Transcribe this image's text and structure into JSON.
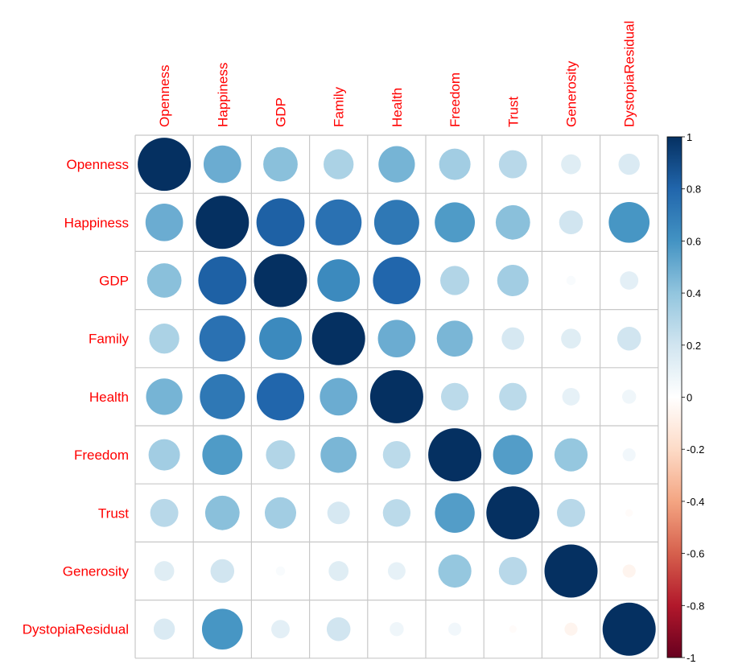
{
  "chart_data": {
    "type": "heatmap",
    "style": "corrplot-circle",
    "variables": [
      "Openness",
      "Happiness",
      "GDP",
      "Family",
      "Health",
      "Freedom",
      "Trust",
      "Generosity",
      "DystopiaResidual"
    ],
    "matrix": [
      [
        1.0,
        0.5,
        0.42,
        0.32,
        0.47,
        0.35,
        0.28,
        0.14,
        0.16
      ],
      [
        0.5,
        1.0,
        0.82,
        0.75,
        0.72,
        0.57,
        0.42,
        0.2,
        0.59
      ],
      [
        0.42,
        0.82,
        1.0,
        0.64,
        0.8,
        0.3,
        0.35,
        0.03,
        0.12
      ],
      [
        0.32,
        0.75,
        0.64,
        1.0,
        0.5,
        0.46,
        0.18,
        0.14,
        0.2
      ],
      [
        0.47,
        0.72,
        0.8,
        0.5,
        1.0,
        0.27,
        0.27,
        0.11,
        0.07
      ],
      [
        0.35,
        0.57,
        0.3,
        0.46,
        0.27,
        1.0,
        0.56,
        0.39,
        0.06
      ],
      [
        0.28,
        0.42,
        0.35,
        0.18,
        0.27,
        0.56,
        1.0,
        0.28,
        -0.02
      ],
      [
        0.14,
        0.2,
        0.03,
        0.14,
        0.11,
        0.39,
        0.28,
        1.0,
        -0.06
      ],
      [
        0.16,
        0.59,
        0.12,
        0.2,
        0.07,
        0.06,
        -0.02,
        -0.06,
        1.0
      ]
    ],
    "color_scale": {
      "range": [
        -1,
        1
      ],
      "ticks": [
        "1",
        "0.8",
        "0.6",
        "0.4",
        "0.2",
        "0",
        "-0.2",
        "-0.4",
        "-0.6",
        "-0.8",
        "-1"
      ],
      "palette": [
        "#67001F",
        "#B2182B",
        "#D6604D",
        "#F4A582",
        "#FDDBC7",
        "#FFFFFF",
        "#D1E5F0",
        "#92C5DE",
        "#4393C3",
        "#2166AC",
        "#053061"
      ]
    },
    "label_color": "#FF0000"
  }
}
